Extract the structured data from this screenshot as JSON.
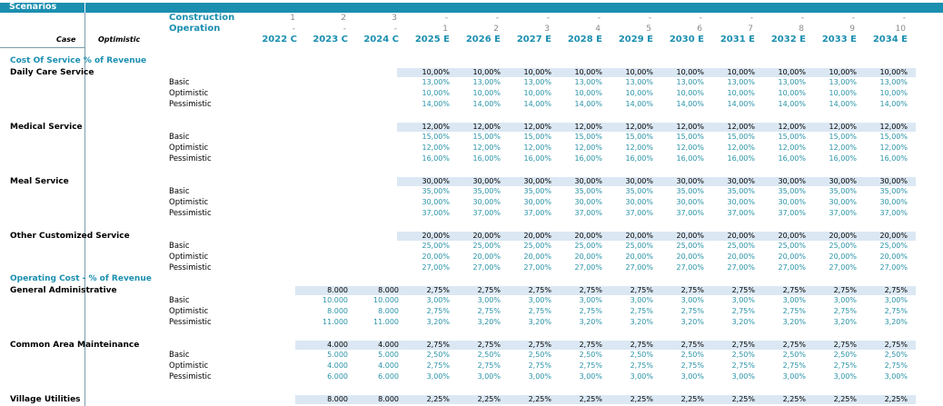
{
  "sheet_title": "Scenarios",
  "header": {
    "construction_label": "Construction",
    "operation_label": "Operation",
    "case_label": "Case",
    "case_value": "Optimistic",
    "construction": [
      "1",
      "2",
      "3",
      "-",
      "-",
      "-",
      "-",
      "-",
      "-",
      "-",
      "-",
      "-",
      "-"
    ],
    "operation": [
      "-",
      "-",
      "-",
      "1",
      "2",
      "3",
      "4",
      "5",
      "6",
      "7",
      "8",
      "9",
      "10"
    ],
    "years": [
      "2022 C",
      "2023 C",
      "2024 C",
      "2025 E",
      "2026 E",
      "2027 E",
      "2028 E",
      "2029 E",
      "2030 E",
      "2031 E",
      "2032 E",
      "2033 E",
      "2034 E"
    ]
  },
  "sections": [
    {
      "title": "Cost Of Service % of Revenue",
      "groups": [
        {
          "name": "Daily Care Service",
          "start_col": 3,
          "current": [
            "10,00%",
            "10,00%",
            "10,00%",
            "10,00%",
            "10,00%",
            "10,00%",
            "10,00%",
            "10,00%",
            "10,00%",
            "10,00%"
          ],
          "rows": [
            {
              "label": "Basic",
              "values": [
                "13,00%",
                "13,00%",
                "13,00%",
                "13,00%",
                "13,00%",
                "13,00%",
                "13,00%",
                "13,00%",
                "13,00%",
                "13,00%"
              ]
            },
            {
              "label": "Optimistic",
              "values": [
                "10,00%",
                "10,00%",
                "10,00%",
                "10,00%",
                "10,00%",
                "10,00%",
                "10,00%",
                "10,00%",
                "10,00%",
                "10,00%"
              ]
            },
            {
              "label": "Pessimistic",
              "values": [
                "14,00%",
                "14,00%",
                "14,00%",
                "14,00%",
                "14,00%",
                "14,00%",
                "14,00%",
                "14,00%",
                "14,00%",
                "14,00%"
              ]
            }
          ]
        },
        {
          "name": "Medical Service",
          "start_col": 3,
          "current": [
            "12,00%",
            "12,00%",
            "12,00%",
            "12,00%",
            "12,00%",
            "12,00%",
            "12,00%",
            "12,00%",
            "12,00%",
            "12,00%"
          ],
          "rows": [
            {
              "label": "Basic",
              "values": [
                "15,00%",
                "15,00%",
                "15,00%",
                "15,00%",
                "15,00%",
                "15,00%",
                "15,00%",
                "15,00%",
                "15,00%",
                "15,00%"
              ]
            },
            {
              "label": "Optimistic",
              "values": [
                "12,00%",
                "12,00%",
                "12,00%",
                "12,00%",
                "12,00%",
                "12,00%",
                "12,00%",
                "12,00%",
                "12,00%",
                "12,00%"
              ]
            },
            {
              "label": "Pessimistic",
              "values": [
                "16,00%",
                "16,00%",
                "16,00%",
                "16,00%",
                "16,00%",
                "16,00%",
                "16,00%",
                "16,00%",
                "16,00%",
                "16,00%"
              ]
            }
          ]
        },
        {
          "name": "Meal Service",
          "start_col": 3,
          "current": [
            "30,00%",
            "30,00%",
            "30,00%",
            "30,00%",
            "30,00%",
            "30,00%",
            "30,00%",
            "30,00%",
            "30,00%",
            "30,00%"
          ],
          "rows": [
            {
              "label": "Basic",
              "values": [
                "35,00%",
                "35,00%",
                "35,00%",
                "35,00%",
                "35,00%",
                "35,00%",
                "35,00%",
                "35,00%",
                "35,00%",
                "35,00%"
              ]
            },
            {
              "label": "Optimistic",
              "values": [
                "30,00%",
                "30,00%",
                "30,00%",
                "30,00%",
                "30,00%",
                "30,00%",
                "30,00%",
                "30,00%",
                "30,00%",
                "30,00%"
              ]
            },
            {
              "label": "Pessimistic",
              "values": [
                "37,00%",
                "37,00%",
                "37,00%",
                "37,00%",
                "37,00%",
                "37,00%",
                "37,00%",
                "37,00%",
                "37,00%",
                "37,00%"
              ]
            }
          ]
        },
        {
          "name": "Other Customized Service",
          "start_col": 3,
          "current": [
            "20,00%",
            "20,00%",
            "20,00%",
            "20,00%",
            "20,00%",
            "20,00%",
            "20,00%",
            "20,00%",
            "20,00%",
            "20,00%"
          ],
          "rows": [
            {
              "label": "Basic",
              "values": [
                "25,00%",
                "25,00%",
                "25,00%",
                "25,00%",
                "25,00%",
                "25,00%",
                "25,00%",
                "25,00%",
                "25,00%",
                "25,00%"
              ]
            },
            {
              "label": "Optimistic",
              "values": [
                "20,00%",
                "20,00%",
                "20,00%",
                "20,00%",
                "20,00%",
                "20,00%",
                "20,00%",
                "20,00%",
                "20,00%",
                "20,00%"
              ]
            },
            {
              "label": "Pessimistic",
              "values": [
                "27,00%",
                "27,00%",
                "27,00%",
                "27,00%",
                "27,00%",
                "27,00%",
                "27,00%",
                "27,00%",
                "27,00%",
                "27,00%"
              ]
            }
          ]
        }
      ]
    },
    {
      "title": "Operating Cost - % of Revenue",
      "groups": [
        {
          "name": "General Administrative",
          "start_col": 1,
          "current": [
            "8.000",
            "8.000",
            "2,75%",
            "2,75%",
            "2,75%",
            "2,75%",
            "2,75%",
            "2,75%",
            "2,75%",
            "2,75%",
            "2,75%",
            "2,75%"
          ],
          "rows": [
            {
              "label": "Basic",
              "values": [
                "10.000",
                "10.000",
                "3,00%",
                "3,00%",
                "3,00%",
                "3,00%",
                "3,00%",
                "3,00%",
                "3,00%",
                "3,00%",
                "3,00%",
                "3,00%"
              ]
            },
            {
              "label": "Optimistic",
              "values": [
                "8.000",
                "8.000",
                "2,75%",
                "2,75%",
                "2,75%",
                "2,75%",
                "2,75%",
                "2,75%",
                "2,75%",
                "2,75%",
                "2,75%",
                "2,75%"
              ]
            },
            {
              "label": "Pessimistic",
              "values": [
                "11.000",
                "11.000",
                "3,20%",
                "3,20%",
                "3,20%",
                "3,20%",
                "3,20%",
                "3,20%",
                "3,20%",
                "3,20%",
                "3,20%",
                "3,20%"
              ]
            }
          ]
        },
        {
          "name": "Common Area Mainteinance",
          "start_col": 1,
          "current": [
            "4.000",
            "4.000",
            "2,75%",
            "2,75%",
            "2,75%",
            "2,75%",
            "2,75%",
            "2,75%",
            "2,75%",
            "2,75%",
            "2,75%",
            "2,75%"
          ],
          "rows": [
            {
              "label": "Basic",
              "values": [
                "5.000",
                "5.000",
                "2,50%",
                "2,50%",
                "2,50%",
                "2,50%",
                "2,50%",
                "2,50%",
                "2,50%",
                "2,50%",
                "2,50%",
                "2,50%"
              ]
            },
            {
              "label": "Optimistic",
              "values": [
                "4.000",
                "4.000",
                "2,75%",
                "2,75%",
                "2,75%",
                "2,75%",
                "2,75%",
                "2,75%",
                "2,75%",
                "2,75%",
                "2,75%",
                "2,75%"
              ]
            },
            {
              "label": "Pessimistic",
              "values": [
                "6.000",
                "6.000",
                "3,00%",
                "3,00%",
                "3,00%",
                "3,00%",
                "3,00%",
                "3,00%",
                "3,00%",
                "3,00%",
                "3,00%",
                "3,00%"
              ]
            }
          ]
        },
        {
          "name": "Village Utilities",
          "start_col": 1,
          "current": [
            "8.000",
            "8.000",
            "2,25%",
            "2,25%",
            "2,25%",
            "2,25%",
            "2,25%",
            "2,25%",
            "2,25%",
            "2,25%",
            "2,25%",
            "2,25%"
          ],
          "rows": []
        }
      ]
    }
  ]
}
